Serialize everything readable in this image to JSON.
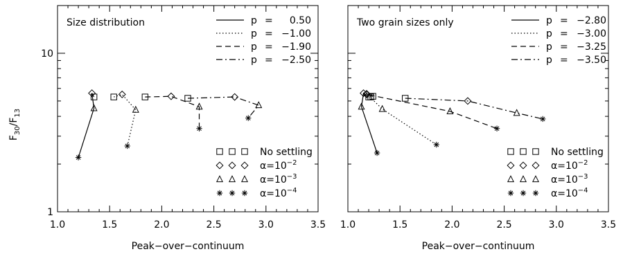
{
  "figure": {
    "ylabel": "F30/F13",
    "ylabel_main": "F",
    "ylabel_sub1": "30",
    "ylabel_slash": "/F",
    "ylabel_sub2": "13"
  },
  "chart_data": [
    {
      "type": "line",
      "title": "Size distribution",
      "xlabel": "Peak−over−continuum",
      "ylabel": "F30/F13",
      "xlim": [
        1.0,
        3.5
      ],
      "ylim": [
        1,
        20
      ],
      "yscale": "log",
      "xticks": [
        "1.0",
        "1.5",
        "2.0",
        "2.5",
        "3.0",
        "3.5"
      ],
      "yticks": [
        "1",
        "10"
      ],
      "grid": false,
      "series": [
        {
          "name": "p = 0.50",
          "label_p": "p",
          "label_eq": "=",
          "label_val": "0.50",
          "dash": "solid",
          "points": [
            [
              1.35,
              5.3
            ],
            [
              1.33,
              5.6
            ],
            [
              1.35,
              4.5
            ],
            [
              1.2,
              2.2
            ]
          ]
        },
        {
          "name": "p = −1.00",
          "label_p": "p",
          "label_eq": "=",
          "label_val": "−1.00",
          "dash": "dotted",
          "points": [
            [
              1.54,
              5.3
            ],
            [
              1.62,
              5.5
            ],
            [
              1.75,
              4.4
            ],
            [
              1.67,
              2.6
            ]
          ]
        },
        {
          "name": "p = −1.90",
          "label_p": "p",
          "label_eq": "=",
          "label_val": "−1.90",
          "dash": "dashed",
          "points": [
            [
              1.84,
              5.3
            ],
            [
              2.09,
              5.35
            ],
            [
              2.36,
              4.6
            ],
            [
              2.36,
              3.35
            ]
          ]
        },
        {
          "name": "p = −2.50",
          "label_p": "p",
          "label_eq": "=",
          "label_val": "−2.50",
          "dash": "dashdot",
          "points": [
            [
              2.25,
              5.2
            ],
            [
              2.7,
              5.3
            ],
            [
              2.93,
              4.7
            ],
            [
              2.83,
              3.9
            ]
          ]
        }
      ],
      "marker_legend": [
        {
          "marker": "square",
          "text": "No settling",
          "is_alpha": false
        },
        {
          "marker": "diamond",
          "alpha_symbol": "α",
          "eq": "=10",
          "exp": "−2",
          "is_alpha": true
        },
        {
          "marker": "triangle",
          "alpha_symbol": "α",
          "eq": "=10",
          "exp": "−3",
          "is_alpha": true
        },
        {
          "marker": "asterisk",
          "alpha_symbol": "α",
          "eq": "=10",
          "exp": "−4",
          "is_alpha": true
        }
      ]
    },
    {
      "type": "line",
      "title": "Two grain sizes only",
      "xlabel": "Peak−over−continuum",
      "ylabel": "",
      "xlim": [
        1.0,
        3.5
      ],
      "ylim": [
        1,
        20
      ],
      "yscale": "log",
      "xticks": [
        "1.0",
        "1.5",
        "2.0",
        "2.5",
        "3.0",
        "3.5"
      ],
      "yticks": [
        "1",
        "10"
      ],
      "grid": false,
      "series": [
        {
          "name": "p = −2.80",
          "label_p": "p",
          "label_eq": "=",
          "label_val": "−2.80",
          "dash": "solid",
          "points": [
            [
              1.2,
              5.3
            ],
            [
              1.15,
              5.6
            ],
            [
              1.13,
              4.6
            ],
            [
              1.28,
              2.35
            ]
          ]
        },
        {
          "name": "p = −3.00",
          "label_p": "p",
          "label_eq": "=",
          "label_val": "−3.00",
          "dash": "dotted",
          "points": [
            [
              1.22,
              5.3
            ],
            [
              1.18,
              5.55
            ],
            [
              1.33,
              4.45
            ],
            [
              1.85,
              2.65
            ]
          ]
        },
        {
          "name": "p = −3.25",
          "label_p": "p",
          "label_eq": "=",
          "label_val": "−3.25",
          "dash": "dashed",
          "points": [
            [
              1.24,
              5.35
            ],
            [
              1.18,
              5.5
            ],
            [
              1.98,
              4.3
            ],
            [
              2.43,
              3.35
            ]
          ]
        },
        {
          "name": "p = −3.50",
          "label_p": "p",
          "label_eq": "=",
          "label_val": "−3.50",
          "dash": "dashdot",
          "points": [
            [
              1.55,
              5.2
            ],
            [
              2.15,
              5.0
            ],
            [
              2.62,
              4.2
            ],
            [
              2.87,
              3.85
            ]
          ]
        }
      ],
      "marker_legend": [
        {
          "marker": "square",
          "text": "No settling",
          "is_alpha": false
        },
        {
          "marker": "diamond",
          "alpha_symbol": "α",
          "eq": "=10",
          "exp": "−2",
          "is_alpha": true
        },
        {
          "marker": "triangle",
          "alpha_symbol": "α",
          "eq": "=10",
          "exp": "−3",
          "is_alpha": true
        },
        {
          "marker": "asterisk",
          "alpha_symbol": "α",
          "eq": "=10",
          "exp": "−4",
          "is_alpha": true
        }
      ]
    }
  ]
}
